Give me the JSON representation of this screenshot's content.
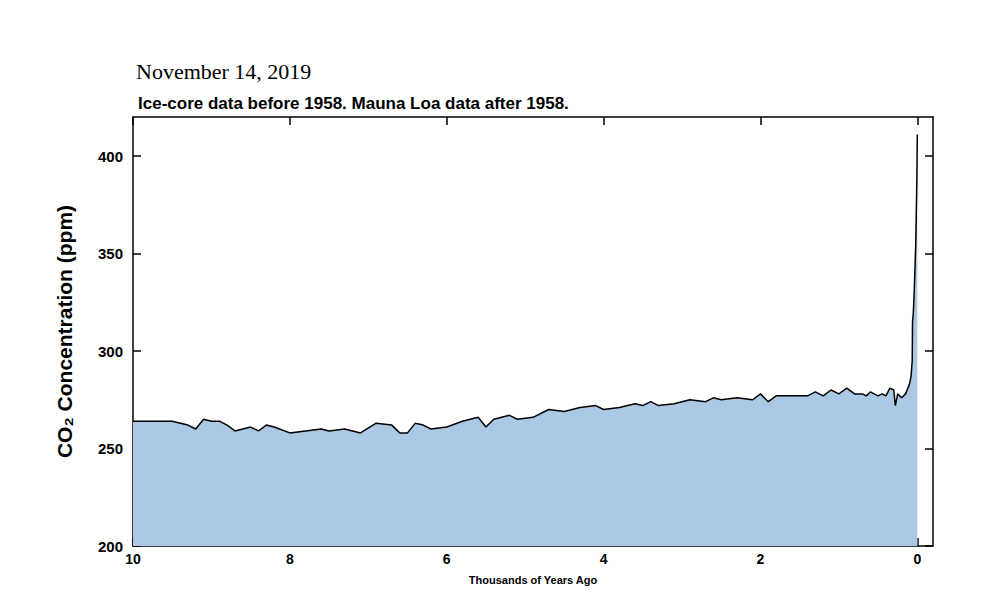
{
  "chart_data": {
    "type": "area",
    "title": "November 14, 2019",
    "subtitle": "Ice-core data before 1958. Mauna Loa data after 1958.",
    "x_label": "Thousands of Years Ago",
    "y_label": "CO₂ Concentration (ppm)",
    "x": [
      10,
      9.8,
      9.5,
      9.3,
      9.2,
      9.1,
      9.0,
      8.9,
      8.8,
      8.7,
      8.6,
      8.5,
      8.4,
      8.3,
      8.2,
      8.0,
      7.8,
      7.6,
      7.5,
      7.3,
      7.1,
      6.9,
      6.7,
      6.6,
      6.5,
      6.4,
      6.3,
      6.2,
      6.0,
      5.8,
      5.6,
      5.5,
      5.4,
      5.3,
      5.2,
      5.1,
      4.9,
      4.7,
      4.5,
      4.3,
      4.1,
      4.0,
      3.8,
      3.6,
      3.5,
      3.4,
      3.3,
      3.1,
      2.9,
      2.7,
      2.6,
      2.5,
      2.3,
      2.1,
      2.0,
      1.9,
      1.8,
      1.6,
      1.4,
      1.3,
      1.2,
      1.1,
      1.0,
      0.9,
      0.8,
      0.7,
      0.65,
      0.6,
      0.5,
      0.45,
      0.4,
      0.35,
      0.3,
      0.28,
      0.25,
      0.2,
      0.15,
      0.1,
      0.08,
      0.065,
      0.061,
      0.05,
      0.04,
      0.03,
      0.02,
      0.01,
      0.005,
      0.0
    ],
    "values": [
      264,
      264,
      264,
      262,
      260,
      265,
      264,
      264,
      262,
      259,
      260,
      261,
      259,
      262,
      261,
      258,
      259,
      260,
      259,
      260,
      258,
      263,
      262,
      258,
      258,
      263,
      262,
      260,
      261,
      264,
      266,
      261,
      265,
      266,
      267,
      265,
      266,
      270,
      269,
      271,
      272,
      270,
      271,
      273,
      272,
      274,
      272,
      273,
      275,
      274,
      276,
      275,
      276,
      275,
      278,
      274,
      277,
      277,
      277,
      279,
      277,
      280,
      278,
      281,
      278,
      278,
      277,
      279,
      277,
      278,
      277,
      281,
      280,
      272,
      278,
      276,
      278,
      283,
      287,
      295,
      315,
      320,
      330,
      342,
      355,
      378,
      390,
      411
    ],
    "color": "#abc8e5",
    "xlim": [
      10,
      -0.2
    ],
    "xticks": [
      10,
      8,
      6,
      4,
      2,
      0
    ],
    "ylim": [
      200,
      420
    ],
    "yticks": [
      200,
      250,
      300,
      350,
      400
    ],
    "grid": false
  }
}
